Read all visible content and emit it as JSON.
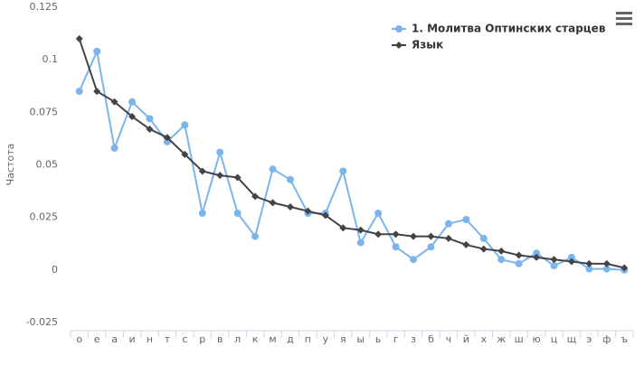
{
  "chart_data": {
    "type": "line",
    "y_label": "Частота",
    "categories": [
      "о",
      "е",
      "а",
      "и",
      "н",
      "т",
      "с",
      "р",
      "в",
      "л",
      "к",
      "м",
      "д",
      "п",
      "у",
      "я",
      "ы",
      "ь",
      "г",
      "з",
      "б",
      "ч",
      "й",
      "х",
      "ж",
      "ш",
      "ю",
      "ц",
      "щ",
      "э",
      "ф",
      "ъ"
    ],
    "series": [
      {
        "name": "1. Молитва Оптинских старцев",
        "color": "#7cb5ec",
        "marker": "circle",
        "values": [
          0.085,
          0.104,
          0.058,
          0.08,
          0.072,
          0.061,
          0.069,
          0.027,
          0.056,
          0.027,
          0.016,
          0.048,
          0.043,
          0.027,
          0.027,
          0.047,
          0.013,
          0.027,
          0.011,
          0.005,
          0.011,
          0.022,
          0.024,
          0.015,
          0.005,
          0.003,
          0.008,
          0.002,
          0.006,
          0.0005,
          0.0005,
          0
        ]
      },
      {
        "name": "Язык",
        "color": "#434348",
        "marker": "diamond",
        "values": [
          0.11,
          0.085,
          0.08,
          0.073,
          0.067,
          0.063,
          0.055,
          0.047,
          0.045,
          0.044,
          0.035,
          0.032,
          0.03,
          0.028,
          0.026,
          0.02,
          0.019,
          0.017,
          0.017,
          0.016,
          0.016,
          0.015,
          0.012,
          0.01,
          0.009,
          0.007,
          0.006,
          0.005,
          0.004,
          0.003,
          0.003,
          0.001
        ]
      }
    ],
    "ylim": [
      -0.025,
      0.125
    ],
    "yticks": [
      -0.025,
      0,
      0.025,
      0.05,
      0.075,
      0.1,
      0.125
    ]
  }
}
